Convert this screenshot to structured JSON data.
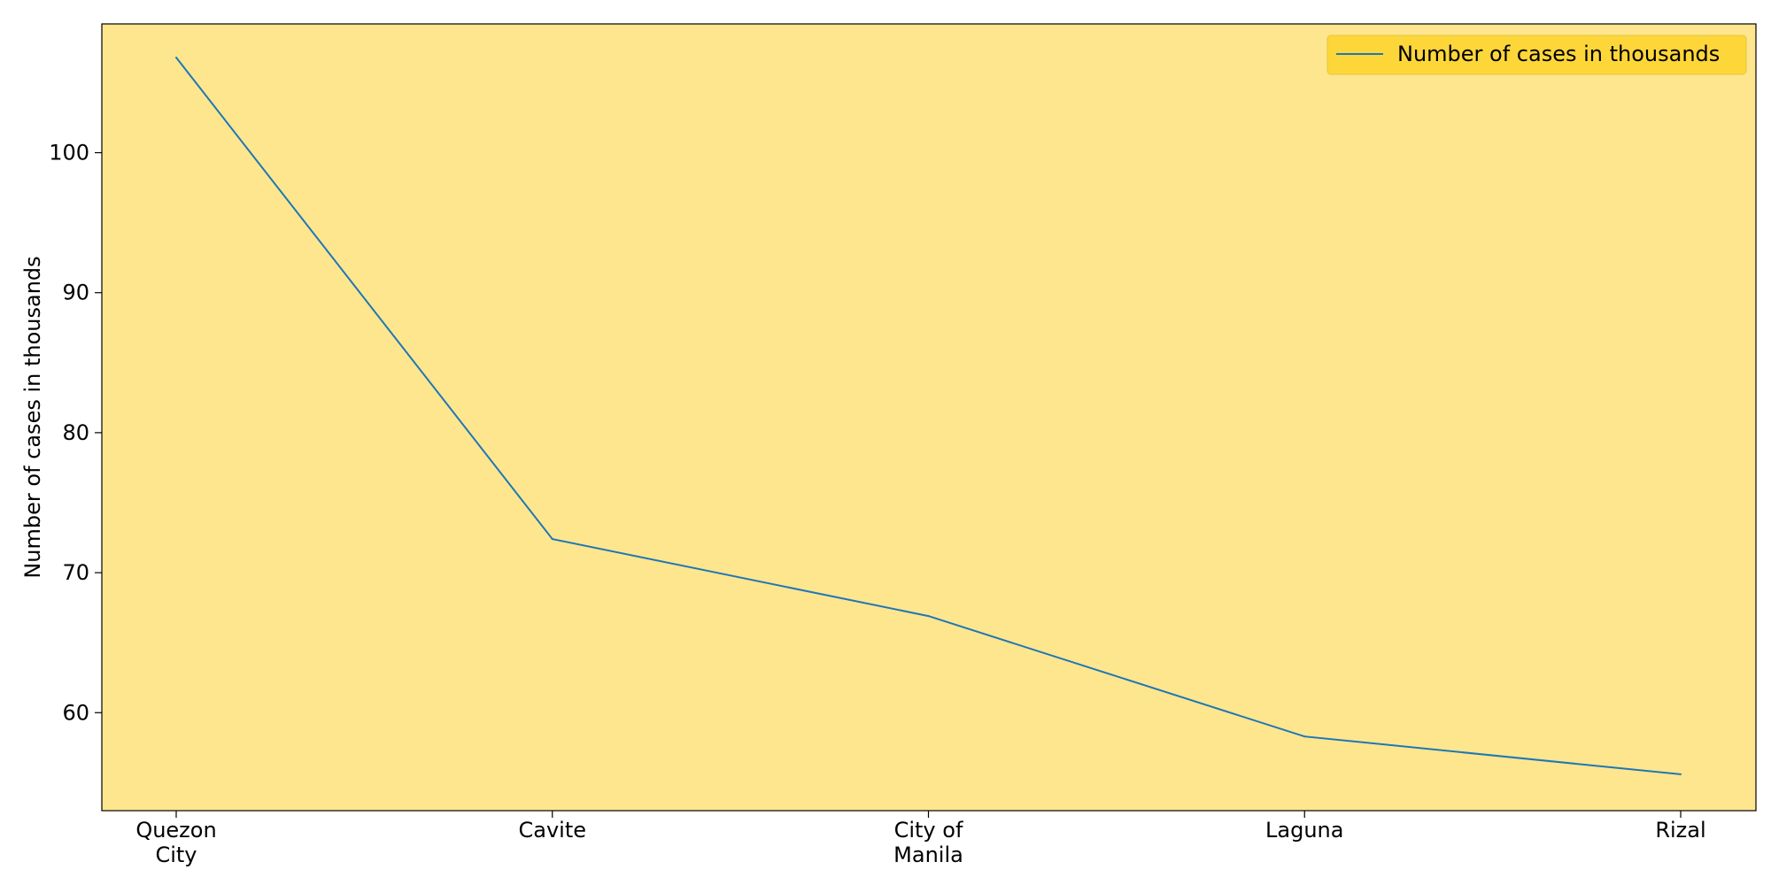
{
  "chart_data": {
    "type": "line",
    "categories": [
      "Quezon\nCity",
      "Cavite",
      "City of\nManila",
      "Laguna",
      "Rizal"
    ],
    "series": [
      {
        "name": "Number of cases in thousands",
        "values": [
          106.8,
          72.4,
          66.9,
          58.3,
          55.6
        ],
        "color": "#1f77b4"
      }
    ],
    "xlabel": "",
    "ylabel": "Number of cases in thousands",
    "ylim": [
      53,
      109.2
    ],
    "yticks": [
      60,
      70,
      80,
      90,
      100
    ],
    "grid": false,
    "legend_position": "top-right",
    "background_color": "#fee68f",
    "legend_background": "#fdd63a"
  }
}
